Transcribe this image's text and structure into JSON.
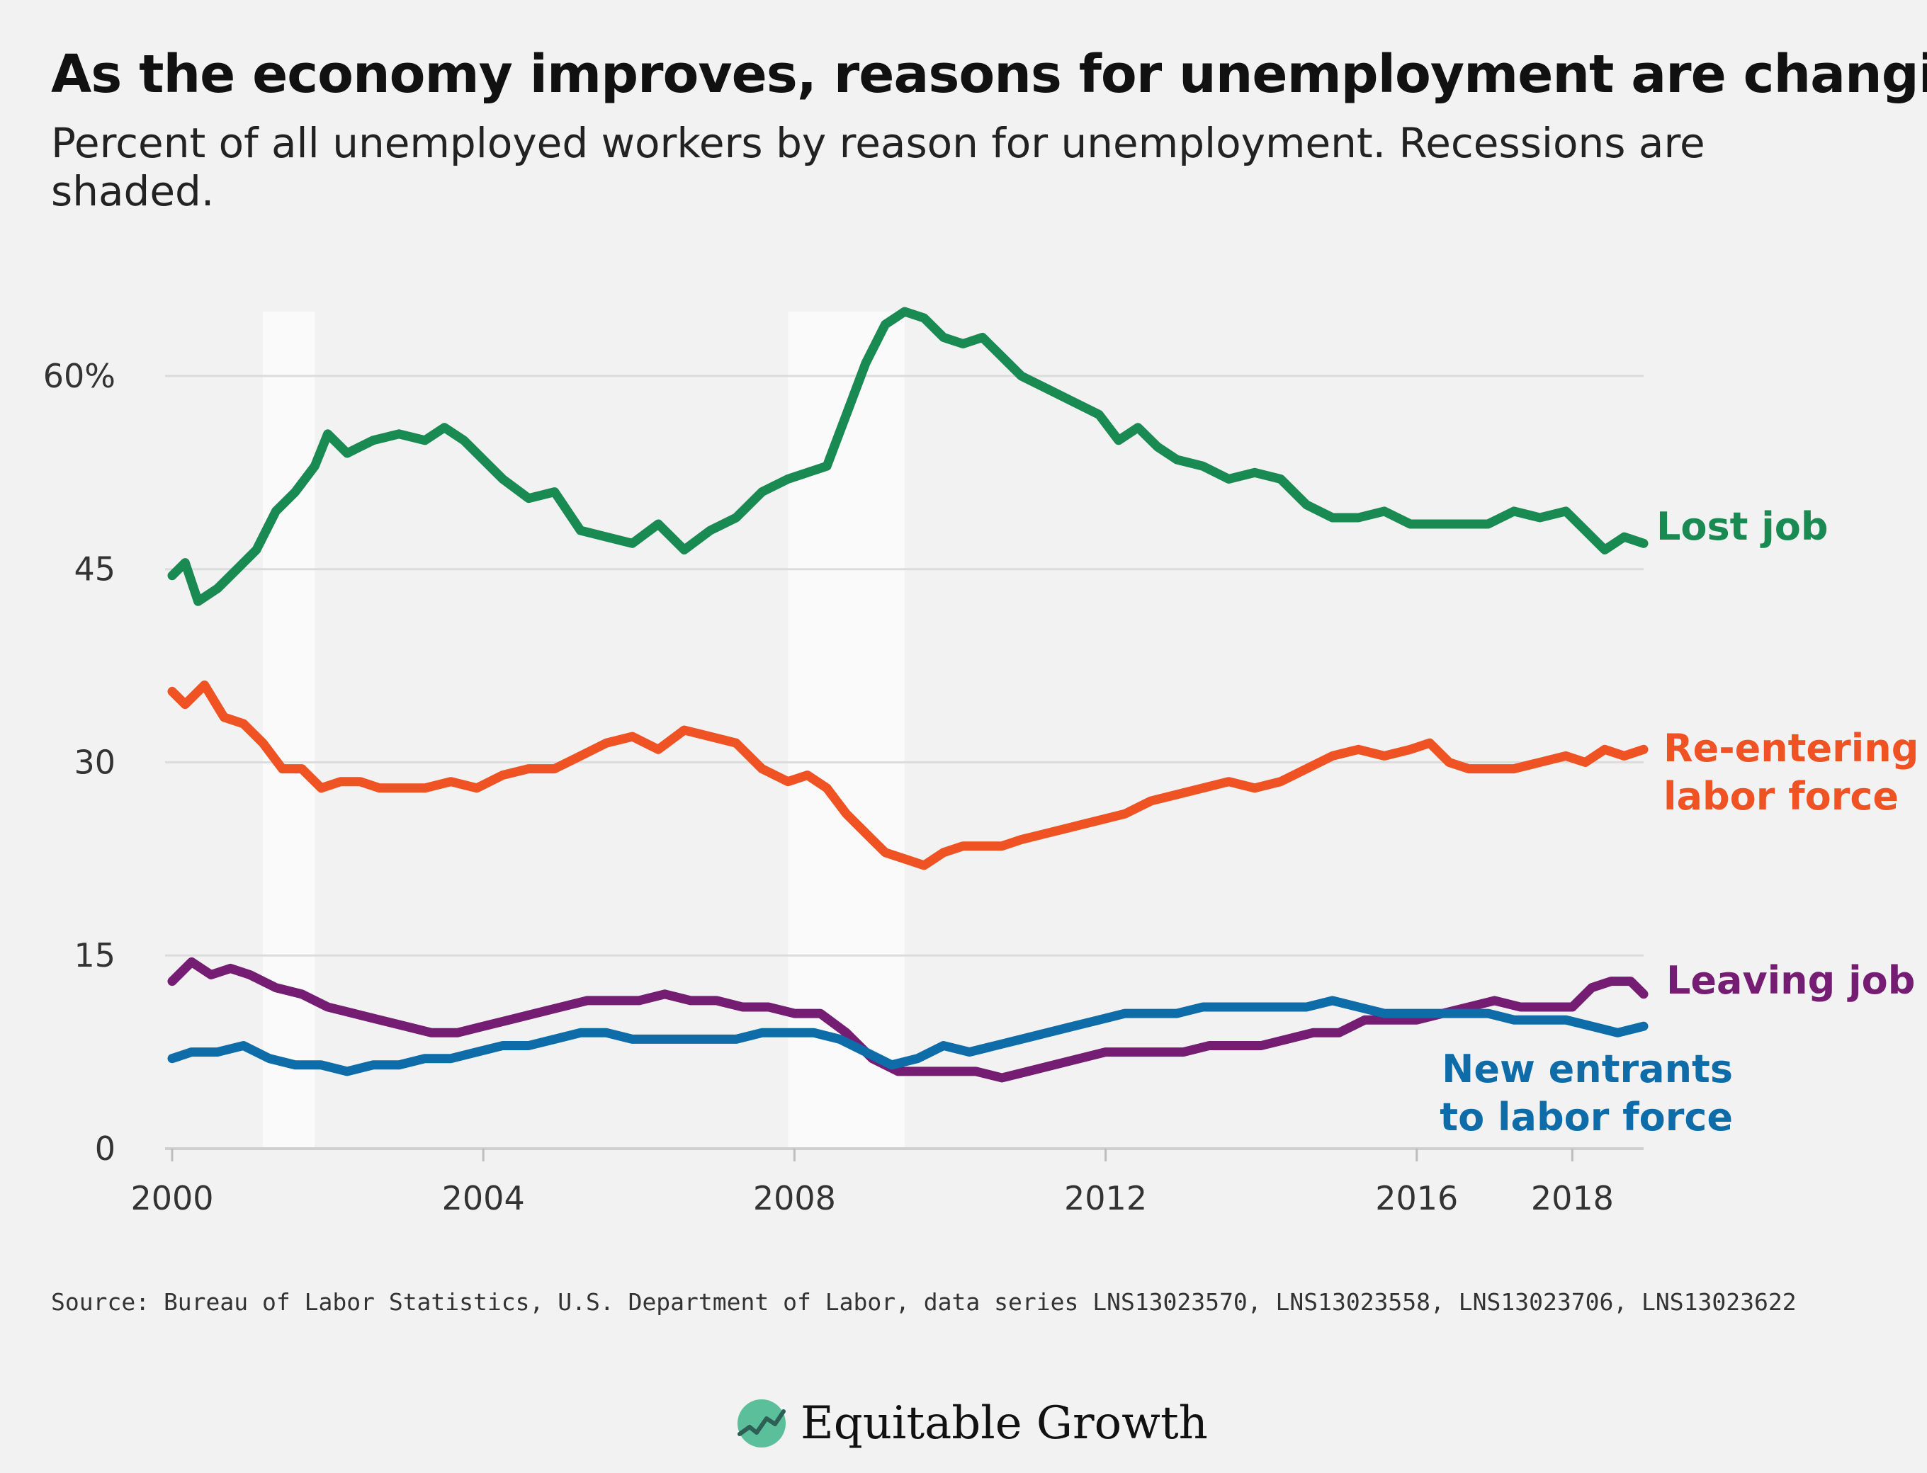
{
  "title": "As the economy improves, reasons for unemployment are changing",
  "subtitle": "Percent of all unemployed workers by reason for unemployment. Recessions are shaded.",
  "source": "Source: Bureau of Labor Statistics, U.S. Department of Labor, data series LNS13023570, LNS13023558, LNS13023706, LNS13023622",
  "brand": {
    "name": "Equitable Growth",
    "logo_icon": "rising-line-logo-icon",
    "logo_color": "#5bbf9b"
  },
  "chart_data": {
    "type": "line",
    "x_range": [
      "2000-01",
      "2018-12"
    ],
    "ylim": [
      0,
      65
    ],
    "y_ticks": [
      0,
      15,
      30,
      45,
      60
    ],
    "y_tick_labels": [
      "0",
      "15",
      "30",
      "45",
      "60%"
    ],
    "x_ticks": [
      "2000-01",
      "2004-01",
      "2008-01",
      "2012-01",
      "2016-01",
      "2018-01"
    ],
    "x_tick_labels": [
      "2000",
      "2004",
      "2008",
      "2012",
      "2016",
      "2018"
    ],
    "grid": "horizontal",
    "recessions": [
      {
        "start": "2001-03",
        "end": "2001-11"
      },
      {
        "start": "2007-12",
        "end": "2009-06"
      }
    ],
    "series": [
      {
        "name": "Lost job",
        "label": "Lost job",
        "color": "#1a8a53",
        "points": [
          [
            "2000-01",
            44.5
          ],
          [
            "2000-03",
            45.5
          ],
          [
            "2000-05",
            42.5
          ],
          [
            "2000-08",
            43.5
          ],
          [
            "2000-11",
            45
          ],
          [
            "2001-02",
            46.5
          ],
          [
            "2001-05",
            49.5
          ],
          [
            "2001-08",
            51
          ],
          [
            "2001-11",
            53
          ],
          [
            "2002-01",
            55.5
          ],
          [
            "2002-04",
            54
          ],
          [
            "2002-08",
            55
          ],
          [
            "2002-12",
            55.5
          ],
          [
            "2003-04",
            55
          ],
          [
            "2003-07",
            56
          ],
          [
            "2003-10",
            55
          ],
          [
            "2004-01",
            53.5
          ],
          [
            "2004-04",
            52
          ],
          [
            "2004-08",
            50.5
          ],
          [
            "2004-12",
            51
          ],
          [
            "2005-04",
            48
          ],
          [
            "2005-08",
            47.5
          ],
          [
            "2005-12",
            47
          ],
          [
            "2006-04",
            48.5
          ],
          [
            "2006-08",
            46.5
          ],
          [
            "2006-12",
            48
          ],
          [
            "2007-04",
            49
          ],
          [
            "2007-08",
            51
          ],
          [
            "2007-12",
            52
          ],
          [
            "2008-03",
            52.5
          ],
          [
            "2008-06",
            53
          ],
          [
            "2008-09",
            57
          ],
          [
            "2008-12",
            61
          ],
          [
            "2009-03",
            64
          ],
          [
            "2009-06",
            65
          ],
          [
            "2009-09",
            64.5
          ],
          [
            "2009-12",
            63
          ],
          [
            "2010-03",
            62.5
          ],
          [
            "2010-06",
            63
          ],
          [
            "2010-09",
            61.5
          ],
          [
            "2010-12",
            60
          ],
          [
            "2011-04",
            59
          ],
          [
            "2011-08",
            58
          ],
          [
            "2011-12",
            57
          ],
          [
            "2012-03",
            55
          ],
          [
            "2012-06",
            56
          ],
          [
            "2012-09",
            54.5
          ],
          [
            "2012-12",
            53.5
          ],
          [
            "2013-04",
            53
          ],
          [
            "2013-08",
            52
          ],
          [
            "2013-12",
            52.5
          ],
          [
            "2014-04",
            52
          ],
          [
            "2014-08",
            50
          ],
          [
            "2014-12",
            49
          ],
          [
            "2015-04",
            49
          ],
          [
            "2015-08",
            49.5
          ],
          [
            "2015-12",
            48.5
          ],
          [
            "2016-04",
            48.5
          ],
          [
            "2016-08",
            48.5
          ],
          [
            "2016-12",
            48.5
          ],
          [
            "2017-04",
            49.5
          ],
          [
            "2017-08",
            49
          ],
          [
            "2017-12",
            49.5
          ],
          [
            "2018-03",
            48
          ],
          [
            "2018-06",
            46.5
          ],
          [
            "2018-09",
            47.5
          ],
          [
            "2018-12",
            47
          ]
        ]
      },
      {
        "name": "Re-entering labor force",
        "label": "Re-entering\nlabor force",
        "color": "#f05323",
        "points": [
          [
            "2000-01",
            35.5
          ],
          [
            "2000-03",
            34.5
          ],
          [
            "2000-06",
            36
          ],
          [
            "2000-09",
            33.5
          ],
          [
            "2000-12",
            33
          ],
          [
            "2001-03",
            31.5
          ],
          [
            "2001-06",
            29.5
          ],
          [
            "2001-09",
            29.5
          ],
          [
            "2001-12",
            28
          ],
          [
            "2002-03",
            28.5
          ],
          [
            "2002-06",
            28.5
          ],
          [
            "2002-09",
            28
          ],
          [
            "2002-12",
            28
          ],
          [
            "2003-04",
            28
          ],
          [
            "2003-08",
            28.5
          ],
          [
            "2003-12",
            28
          ],
          [
            "2004-04",
            29
          ],
          [
            "2004-08",
            29.5
          ],
          [
            "2004-12",
            29.5
          ],
          [
            "2005-04",
            30.5
          ],
          [
            "2005-08",
            31.5
          ],
          [
            "2005-12",
            32
          ],
          [
            "2006-04",
            31
          ],
          [
            "2006-08",
            32.5
          ],
          [
            "2006-12",
            32
          ],
          [
            "2007-04",
            31.5
          ],
          [
            "2007-08",
            29.5
          ],
          [
            "2007-12",
            28.5
          ],
          [
            "2008-03",
            29
          ],
          [
            "2008-06",
            28
          ],
          [
            "2008-09",
            26
          ],
          [
            "2008-12",
            24.5
          ],
          [
            "2009-03",
            23
          ],
          [
            "2009-06",
            22.5
          ],
          [
            "2009-09",
            22
          ],
          [
            "2009-12",
            23
          ],
          [
            "2010-03",
            23.5
          ],
          [
            "2010-06",
            23.5
          ],
          [
            "2010-09",
            23.5
          ],
          [
            "2010-12",
            24
          ],
          [
            "2011-04",
            24.5
          ],
          [
            "2011-08",
            25
          ],
          [
            "2011-12",
            25.5
          ],
          [
            "2012-04",
            26
          ],
          [
            "2012-08",
            27
          ],
          [
            "2012-12",
            27.5
          ],
          [
            "2013-04",
            28
          ],
          [
            "2013-08",
            28.5
          ],
          [
            "2013-12",
            28
          ],
          [
            "2014-04",
            28.5
          ],
          [
            "2014-08",
            29.5
          ],
          [
            "2014-12",
            30.5
          ],
          [
            "2015-04",
            31
          ],
          [
            "2015-08",
            30.5
          ],
          [
            "2015-12",
            31
          ],
          [
            "2016-03",
            31.5
          ],
          [
            "2016-06",
            30
          ],
          [
            "2016-09",
            29.5
          ],
          [
            "2016-12",
            29.5
          ],
          [
            "2017-04",
            29.5
          ],
          [
            "2017-08",
            30
          ],
          [
            "2017-12",
            30.5
          ],
          [
            "2018-03",
            30
          ],
          [
            "2018-06",
            31
          ],
          [
            "2018-09",
            30.5
          ],
          [
            "2018-12",
            31
          ]
        ]
      },
      {
        "name": "Leaving job",
        "label": "Leaving job",
        "color": "#751c73",
        "points": [
          [
            "2000-01",
            13
          ],
          [
            "2000-04",
            14.5
          ],
          [
            "2000-07",
            13.5
          ],
          [
            "2000-10",
            14
          ],
          [
            "2001-01",
            13.5
          ],
          [
            "2001-05",
            12.5
          ],
          [
            "2001-09",
            12
          ],
          [
            "2002-01",
            11
          ],
          [
            "2002-05",
            10.5
          ],
          [
            "2002-09",
            10
          ],
          [
            "2003-01",
            9.5
          ],
          [
            "2003-05",
            9
          ],
          [
            "2003-09",
            9
          ],
          [
            "2004-01",
            9.5
          ],
          [
            "2004-05",
            10
          ],
          [
            "2004-09",
            10.5
          ],
          [
            "2005-01",
            11
          ],
          [
            "2005-05",
            11.5
          ],
          [
            "2005-09",
            11.5
          ],
          [
            "2006-01",
            11.5
          ],
          [
            "2006-05",
            12
          ],
          [
            "2006-09",
            11.5
          ],
          [
            "2007-01",
            11.5
          ],
          [
            "2007-05",
            11
          ],
          [
            "2007-09",
            11
          ],
          [
            "2008-01",
            10.5
          ],
          [
            "2008-05",
            10.5
          ],
          [
            "2008-09",
            9
          ],
          [
            "2009-01",
            7
          ],
          [
            "2009-05",
            6
          ],
          [
            "2009-09",
            6
          ],
          [
            "2010-01",
            6
          ],
          [
            "2010-05",
            6
          ],
          [
            "2010-09",
            5.5
          ],
          [
            "2011-01",
            6
          ],
          [
            "2011-05",
            6.5
          ],
          [
            "2011-09",
            7
          ],
          [
            "2012-01",
            7.5
          ],
          [
            "2012-05",
            7.5
          ],
          [
            "2012-09",
            7.5
          ],
          [
            "2013-01",
            7.5
          ],
          [
            "2013-05",
            8
          ],
          [
            "2013-09",
            8
          ],
          [
            "2014-01",
            8
          ],
          [
            "2014-05",
            8.5
          ],
          [
            "2014-09",
            9
          ],
          [
            "2015-01",
            9
          ],
          [
            "2015-05",
            10
          ],
          [
            "2015-09",
            10
          ],
          [
            "2016-01",
            10
          ],
          [
            "2016-05",
            10.5
          ],
          [
            "2016-09",
            11
          ],
          [
            "2017-01",
            11.5
          ],
          [
            "2017-05",
            11
          ],
          [
            "2017-09",
            11
          ],
          [
            "2018-01",
            11
          ],
          [
            "2018-04",
            12.5
          ],
          [
            "2018-07",
            13
          ],
          [
            "2018-10",
            13
          ],
          [
            "2018-12",
            12
          ]
        ]
      },
      {
        "name": "New entrants to labor force",
        "label": "New entrants\nto labor force",
        "color": "#0e6da8",
        "points": [
          [
            "2000-01",
            7
          ],
          [
            "2000-04",
            7.5
          ],
          [
            "2000-08",
            7.5
          ],
          [
            "2000-12",
            8
          ],
          [
            "2001-04",
            7
          ],
          [
            "2001-08",
            6.5
          ],
          [
            "2001-12",
            6.5
          ],
          [
            "2002-04",
            6
          ],
          [
            "2002-08",
            6.5
          ],
          [
            "2002-12",
            6.5
          ],
          [
            "2003-04",
            7
          ],
          [
            "2003-08",
            7
          ],
          [
            "2003-12",
            7.5
          ],
          [
            "2004-04",
            8
          ],
          [
            "2004-08",
            8
          ],
          [
            "2004-12",
            8.5
          ],
          [
            "2005-04",
            9
          ],
          [
            "2005-08",
            9
          ],
          [
            "2005-12",
            8.5
          ],
          [
            "2006-04",
            8.5
          ],
          [
            "2006-08",
            8.5
          ],
          [
            "2006-12",
            8.5
          ],
          [
            "2007-04",
            8.5
          ],
          [
            "2007-08",
            9
          ],
          [
            "2007-12",
            9
          ],
          [
            "2008-04",
            9
          ],
          [
            "2008-08",
            8.5
          ],
          [
            "2008-12",
            7.5
          ],
          [
            "2009-04",
            6.5
          ],
          [
            "2009-08",
            7
          ],
          [
            "2009-12",
            8
          ],
          [
            "2010-04",
            7.5
          ],
          [
            "2010-08",
            8
          ],
          [
            "2010-12",
            8.5
          ],
          [
            "2011-04",
            9
          ],
          [
            "2011-08",
            9.5
          ],
          [
            "2011-12",
            10
          ],
          [
            "2012-04",
            10.5
          ],
          [
            "2012-08",
            10.5
          ],
          [
            "2012-12",
            10.5
          ],
          [
            "2013-04",
            11
          ],
          [
            "2013-08",
            11
          ],
          [
            "2013-12",
            11
          ],
          [
            "2014-04",
            11
          ],
          [
            "2014-08",
            11
          ],
          [
            "2014-12",
            11.5
          ],
          [
            "2015-04",
            11
          ],
          [
            "2015-08",
            10.5
          ],
          [
            "2015-12",
            10.5
          ],
          [
            "2016-04",
            10.5
          ],
          [
            "2016-08",
            10.5
          ],
          [
            "2016-12",
            10.5
          ],
          [
            "2017-04",
            10
          ],
          [
            "2017-08",
            10
          ],
          [
            "2017-12",
            10
          ],
          [
            "2018-04",
            9.5
          ],
          [
            "2018-08",
            9
          ],
          [
            "2018-12",
            9.5
          ]
        ]
      }
    ]
  }
}
